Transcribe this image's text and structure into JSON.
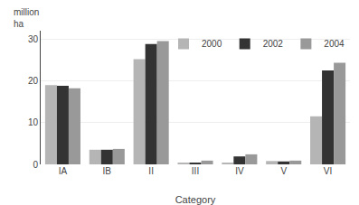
{
  "chart_data": {
    "type": "bar",
    "categories": [
      "IA",
      "IB",
      "II",
      "III",
      "IV",
      "V",
      "VI"
    ],
    "series": [
      {
        "name": "2000",
        "color": "#b5b5b5",
        "values": [
          19.0,
          3.5,
          25.2,
          0.4,
          0.4,
          0.8,
          11.5
        ]
      },
      {
        "name": "2002",
        "color": "#333333",
        "values": [
          18.8,
          3.5,
          28.8,
          0.3,
          1.9,
          0.7,
          22.5
        ]
      },
      {
        "name": "2004",
        "color": "#999999",
        "values": [
          18.2,
          3.7,
          29.5,
          0.9,
          2.4,
          0.9,
          24.3
        ]
      }
    ],
    "xlabel": "Category",
    "ylabel": "million\nha",
    "ylim": [
      0,
      32
    ],
    "yticks": [
      0,
      10,
      20,
      30
    ],
    "grid": true,
    "legend": "upper right"
  }
}
